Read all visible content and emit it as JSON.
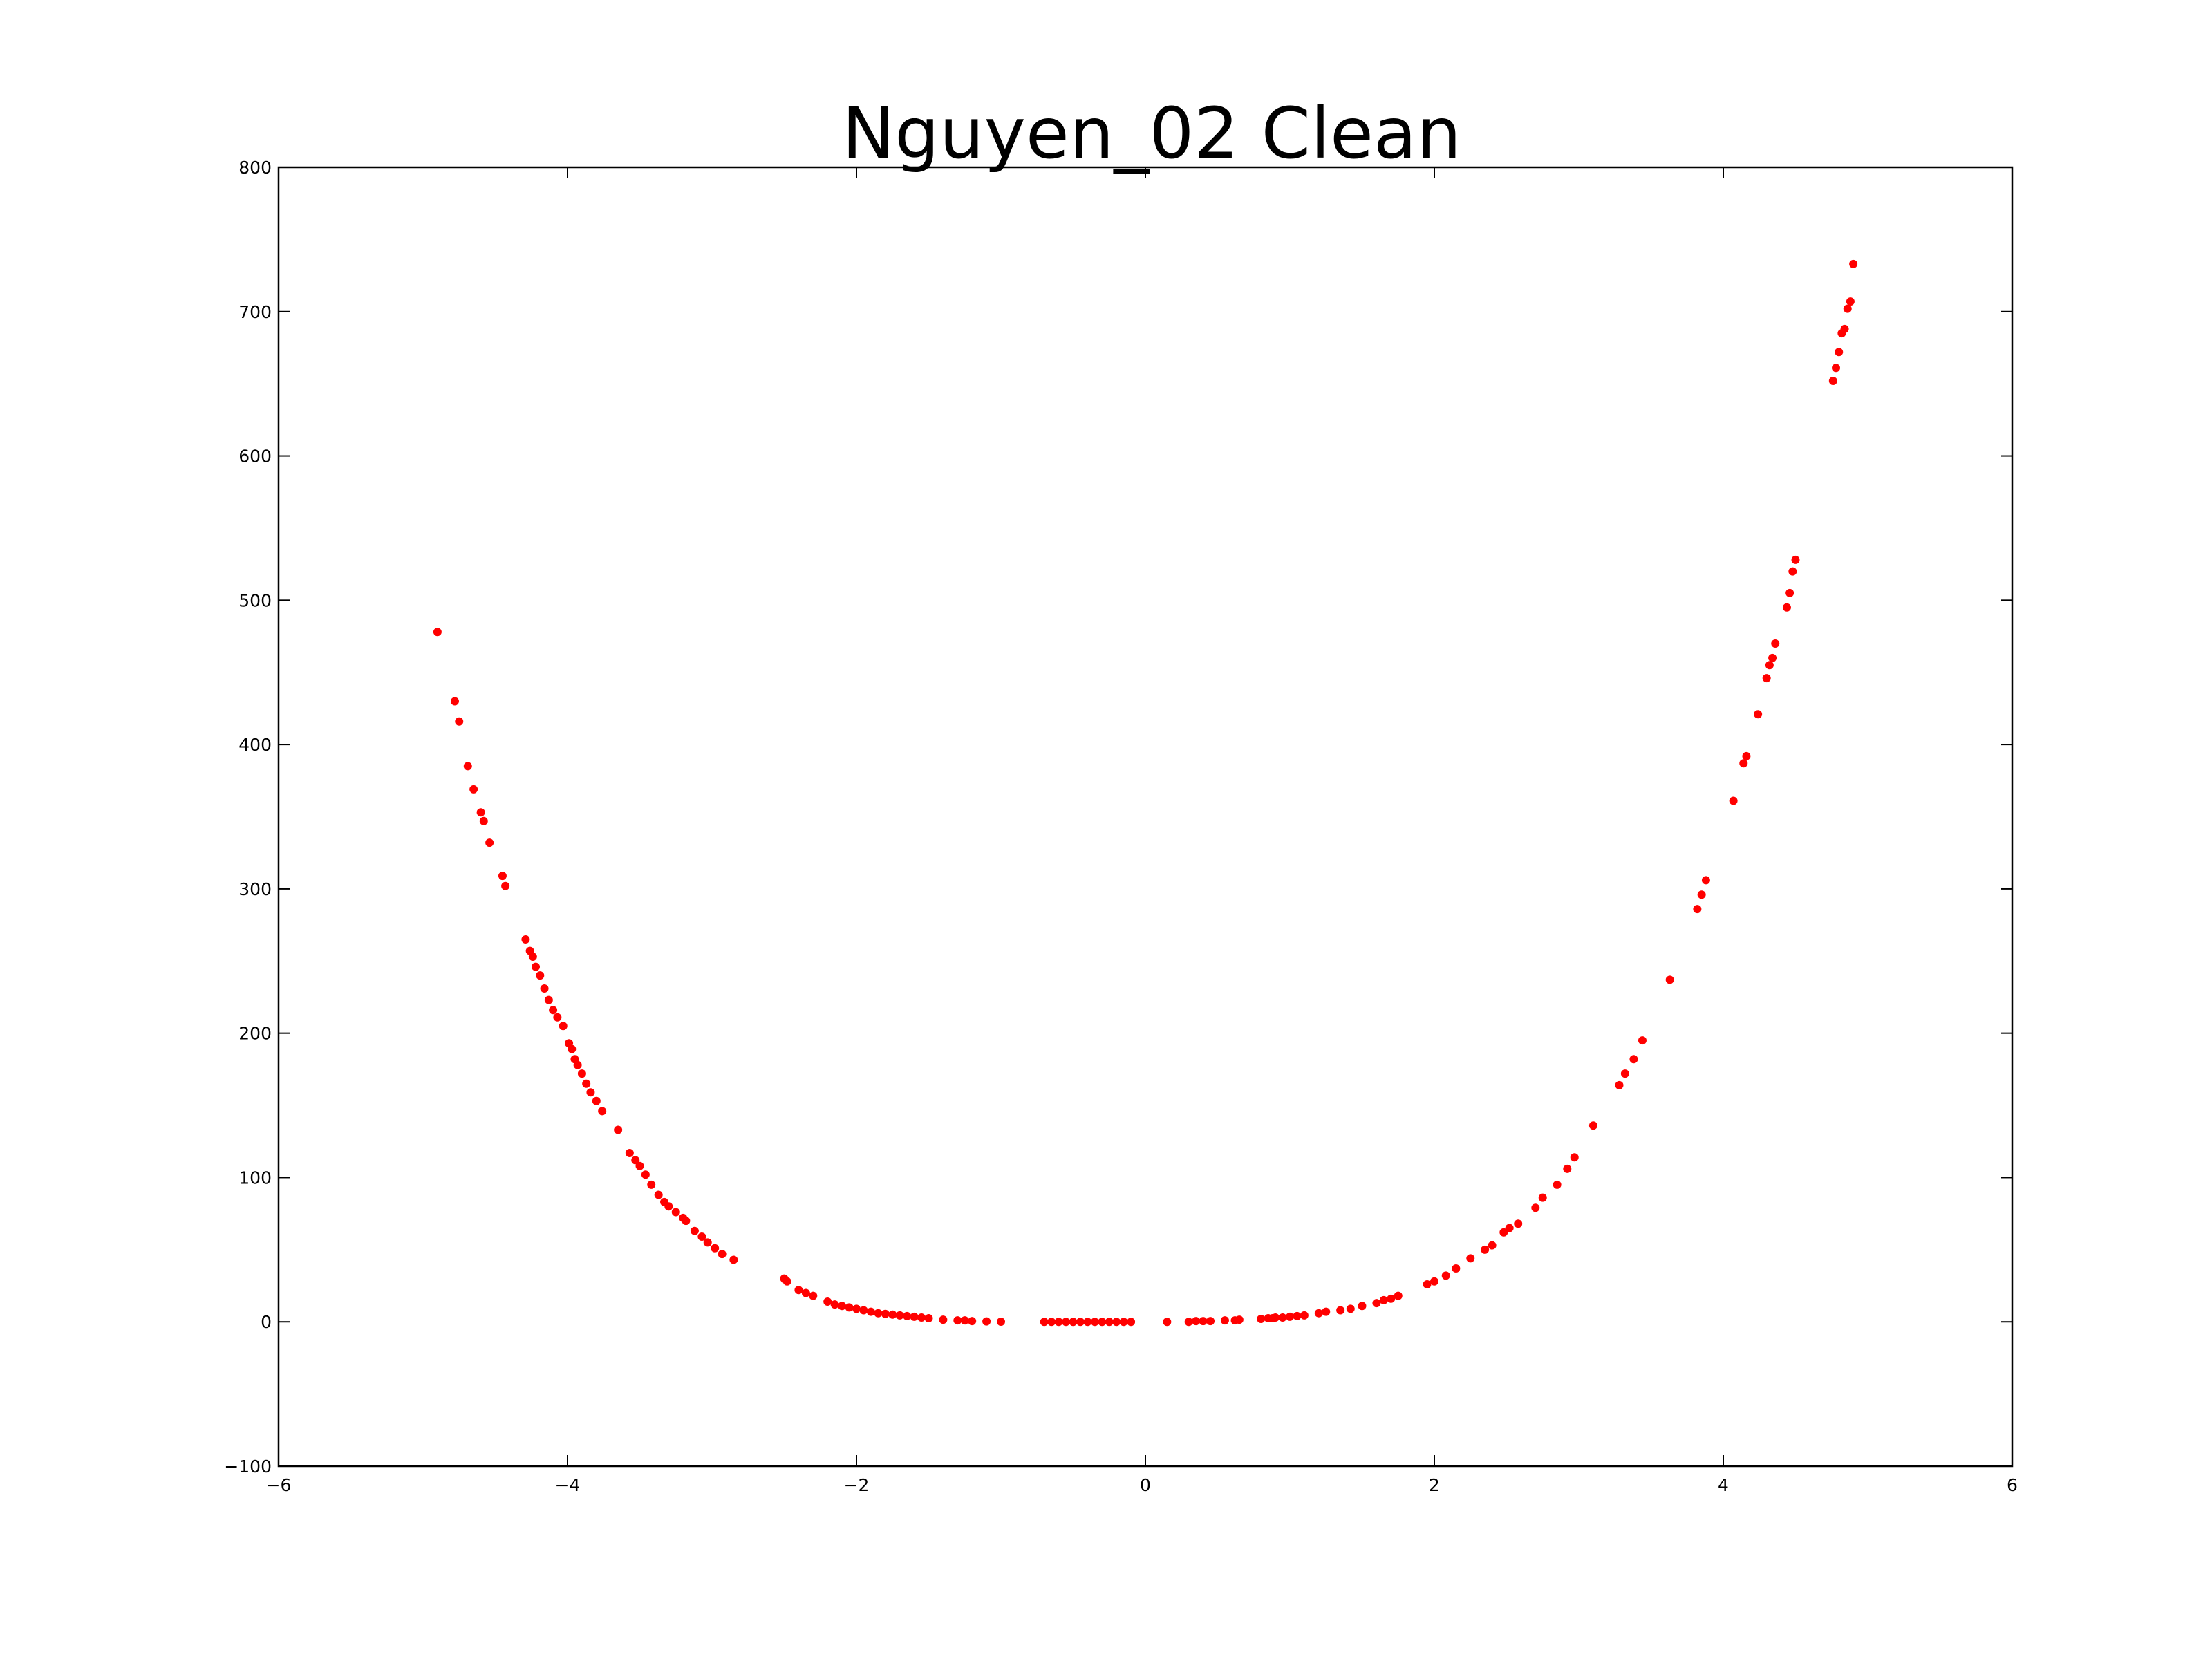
{
  "chart_data": {
    "type": "scatter",
    "title": "Nguyen_02 Clean",
    "xlabel": "",
    "ylabel": "",
    "xlim": [
      -6,
      6
    ],
    "ylim": [
      -100,
      800
    ],
    "x_ticks": [
      -6,
      -4,
      -2,
      0,
      2,
      4,
      6
    ],
    "y_ticks": [
      -100,
      0,
      100,
      200,
      300,
      400,
      500,
      600,
      700,
      800
    ],
    "x_tick_labels": [
      "−6",
      "−4",
      "−2",
      "0",
      "2",
      "4",
      "6"
    ],
    "y_tick_labels": [
      "−100",
      "0",
      "100",
      "200",
      "300",
      "400",
      "500",
      "600",
      "700",
      "800"
    ],
    "grid": false,
    "legend": "none",
    "marker_color": "#ff0000",
    "series": [
      {
        "x": [
          -4.9,
          -4.78,
          -4.75,
          -4.69,
          -4.65,
          -4.6,
          -4.58,
          -4.54,
          -4.45,
          -4.43,
          -4.29,
          -4.26,
          -4.24,
          -4.22,
          -4.19,
          -4.16,
          -4.13,
          -4.1,
          -4.07,
          -4.03,
          -3.99,
          -3.97,
          -3.95,
          -3.93,
          -3.9,
          -3.87,
          -3.84,
          -3.8,
          -3.76,
          -3.65,
          -3.57,
          -3.53,
          -3.5,
          -3.46,
          -3.42,
          -3.37,
          -3.33,
          -3.3,
          -3.25,
          -3.2,
          -3.18,
          -3.12,
          -3.07,
          -3.03,
          -2.98,
          -2.93,
          -2.85,
          -2.5,
          -2.48,
          -2.4,
          -2.35,
          -2.3,
          -2.2,
          -2.15,
          -2.1,
          -2.05,
          -2.0,
          -1.95,
          -1.9,
          -1.85,
          -1.8,
          -1.75,
          -1.7,
          -1.65,
          -1.6,
          -1.55,
          -1.5,
          -1.4,
          -1.3,
          -1.25,
          -1.2,
          -1.1,
          -1.0,
          -0.7,
          -0.65,
          -0.6,
          -0.55,
          -0.5,
          -0.45,
          -0.4,
          -0.35,
          -0.3,
          -0.25,
          -0.2,
          -0.15,
          -0.1,
          0.15,
          0.3,
          0.35,
          0.4,
          0.45,
          0.55,
          0.62,
          0.65,
          0.8,
          0.85,
          0.88,
          0.9,
          0.95,
          1.0,
          1.05,
          1.1,
          1.2,
          1.25,
          1.35,
          1.42,
          1.5,
          1.6,
          1.65,
          1.7,
          1.75,
          1.95,
          2.0,
          2.08,
          2.15,
          2.25,
          2.35,
          2.4,
          2.48,
          2.52,
          2.58,
          2.7,
          2.75,
          2.85,
          2.92,
          2.97,
          3.1,
          3.28,
          3.32,
          3.38,
          3.44,
          3.63,
          3.82,
          3.85,
          3.88,
          4.07,
          4.14,
          4.16,
          4.24,
          4.3,
          4.32,
          4.34,
          4.36,
          4.44,
          4.46,
          4.48,
          4.5,
          4.76,
          4.78,
          4.8,
          4.82,
          4.84,
          4.86,
          4.88,
          4.9
        ],
        "y": [
          478,
          430,
          416,
          385,
          369,
          353,
          347,
          332,
          309,
          302,
          265,
          257,
          253,
          246,
          240,
          231,
          223,
          216,
          211,
          205,
          193,
          189,
          182,
          178,
          172,
          165,
          159,
          153,
          146,
          133,
          117,
          112,
          108,
          102,
          95,
          88,
          83,
          80,
          76,
          72,
          70,
          63,
          59,
          55,
          51,
          47,
          43,
          30,
          28,
          22,
          20,
          18,
          14,
          12,
          11,
          10,
          9,
          8,
          7,
          6,
          5.5,
          5,
          4.5,
          4,
          3.5,
          3,
          2.5,
          1.5,
          1,
          1,
          0.5,
          0.3,
          0.1,
          0,
          0,
          0,
          0,
          0,
          0,
          0,
          0,
          0,
          0,
          0,
          0,
          0,
          0,
          0,
          0.5,
          0.5,
          0.5,
          1,
          1,
          1.5,
          2,
          2.5,
          2.5,
          3,
          3,
          3.5,
          4,
          4.5,
          6,
          7,
          8,
          9,
          11,
          13,
          15,
          16,
          18,
          26,
          28,
          32,
          37,
          44,
          50,
          53,
          62,
          65,
          68,
          79,
          86,
          95,
          106,
          114,
          136,
          164,
          172,
          182,
          195,
          237,
          286,
          296,
          306,
          361,
          387,
          392,
          421,
          446,
          455,
          460,
          470,
          495,
          505,
          520,
          528,
          652,
          661,
          672,
          685,
          688,
          702,
          707,
          733
        ]
      }
    ]
  }
}
